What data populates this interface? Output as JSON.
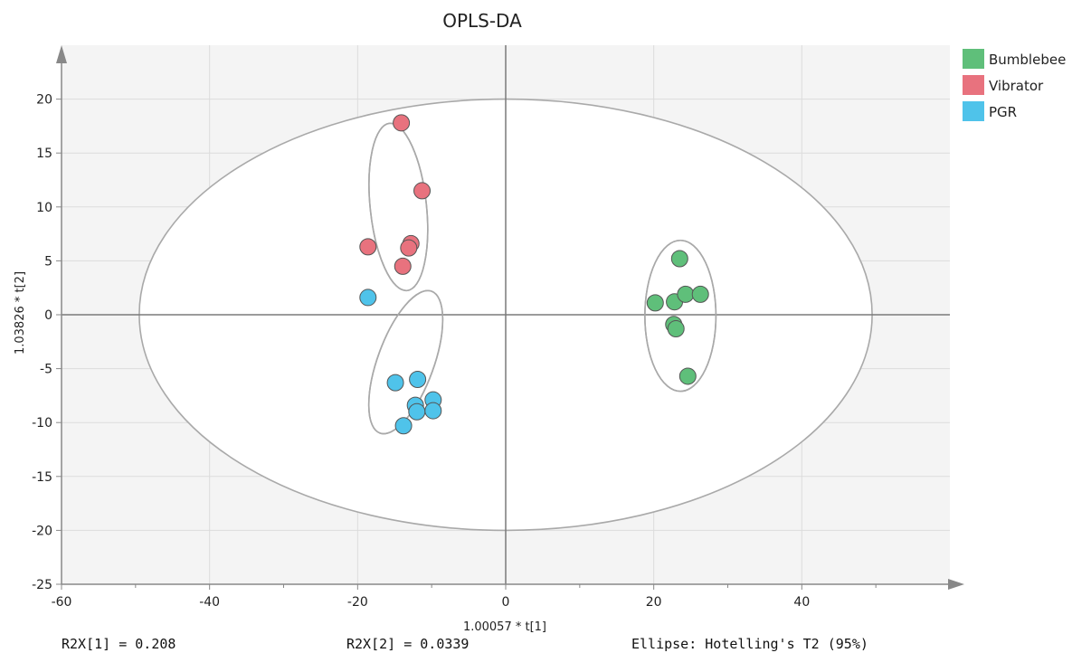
{
  "chart_data": {
    "type": "scatter",
    "title": "OPLS-DA",
    "xlabel": "1.00057 * t[1]",
    "ylabel": "1.03826 * t[2]",
    "xlim": [
      -60,
      60
    ],
    "ylim": [
      -25,
      25
    ],
    "x_ticks": [
      -60,
      -40,
      -20,
      0,
      20,
      40
    ],
    "y_ticks": [
      -25,
      -20,
      -15,
      -10,
      -5,
      0,
      5,
      10,
      15,
      20
    ],
    "grid": true,
    "legend_position": "top-right",
    "series": [
      {
        "name": "Bumblebee",
        "color": "#5fbf7a",
        "points": [
          [
            23.5,
            5.2
          ],
          [
            20.2,
            1.1
          ],
          [
            22.8,
            1.2
          ],
          [
            24.3,
            1.9
          ],
          [
            26.3,
            1.9
          ],
          [
            22.7,
            -0.9
          ],
          [
            23.0,
            -1.3
          ],
          [
            24.6,
            -5.7
          ]
        ]
      },
      {
        "name": "Vibrator",
        "color": "#e8727e",
        "points": [
          [
            -14.1,
            17.8
          ],
          [
            -11.3,
            11.5
          ],
          [
            -18.6,
            6.3
          ],
          [
            -12.8,
            6.6
          ],
          [
            -13.1,
            6.2
          ],
          [
            -13.9,
            4.5
          ]
        ]
      },
      {
        "name": "PGR",
        "color": "#4fc3ea",
        "points": [
          [
            -18.6,
            1.6
          ],
          [
            -14.9,
            -6.3
          ],
          [
            -11.9,
            -6.0
          ],
          [
            -12.2,
            -8.4
          ],
          [
            -12.0,
            -9.0
          ],
          [
            -9.8,
            -7.9
          ],
          [
            -9.8,
            -8.9
          ],
          [
            -13.8,
            -10.3
          ]
        ]
      }
    ],
    "ellipses": [
      {
        "name": "hotelling-t2-95",
        "cx": 0,
        "cy": 0,
        "rx": 49.5,
        "ry": 20,
        "angle": 0
      },
      {
        "name": "vibrator-cluster",
        "cx": -14.5,
        "cy": 10,
        "rx": 3.8,
        "ry": 7.8,
        "angle": -6
      },
      {
        "name": "pgr-cluster",
        "cx": -13.5,
        "cy": -4.4,
        "rx": 3.8,
        "ry": 7.0,
        "angle": 20
      },
      {
        "name": "bumblebee-cluster",
        "cx": 23.6,
        "cy": -0.1,
        "rx": 4.8,
        "ry": 7.0,
        "angle": 0
      }
    ],
    "footer": {
      "r2x1": "R2X[1] = 0.208",
      "r2x2": "R2X[2] = 0.0339",
      "ellipse_note": "Ellipse: Hotelling's T2 (95%)"
    }
  }
}
